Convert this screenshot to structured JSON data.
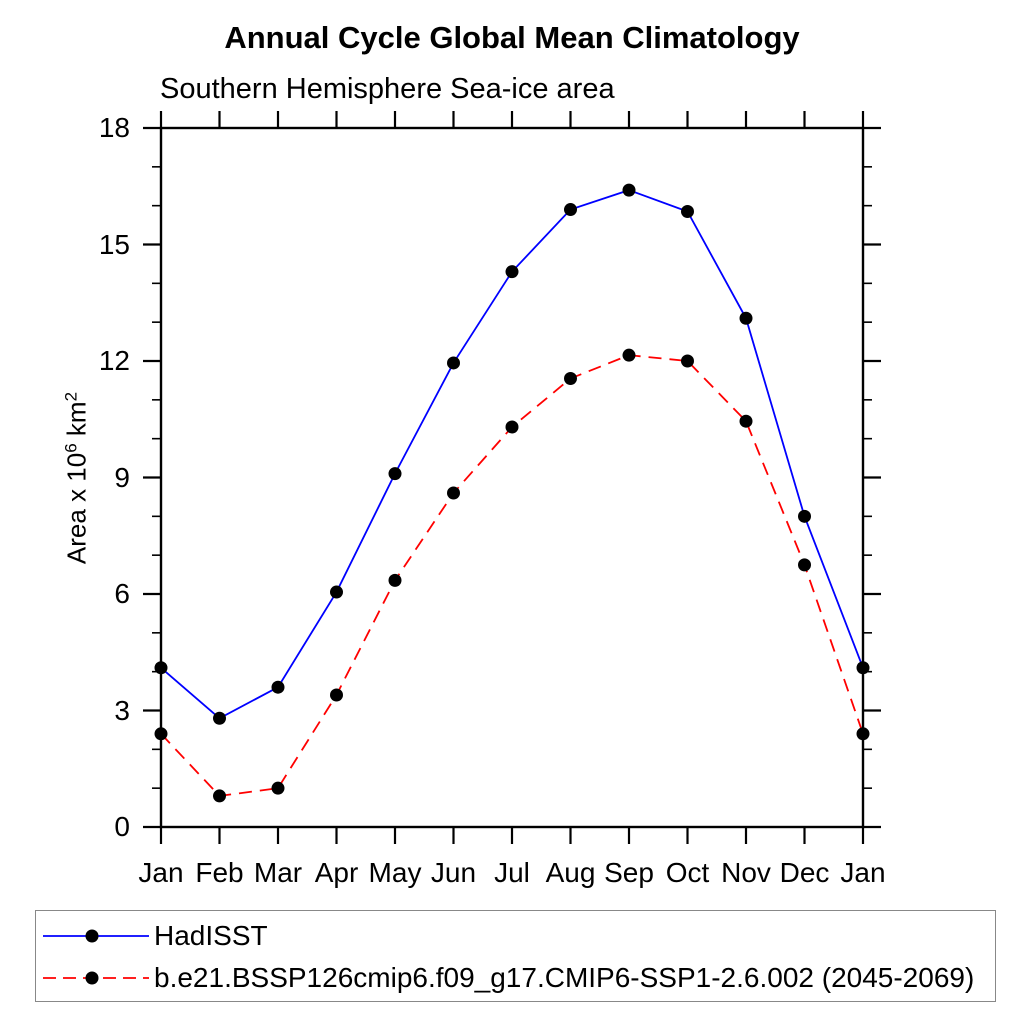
{
  "title": "Annual Cycle Global Mean Climatology",
  "subtitle": "Southern Hemisphere Sea-ice area",
  "y_axis": {
    "label_prefix": "Area x 10",
    "label_sup1": "6",
    "label_mid": " km",
    "label_sup2": "2"
  },
  "chart_data": {
    "type": "line",
    "title": "Annual Cycle Global Mean Climatology",
    "subtitle": "Southern Hemisphere Sea-ice area",
    "xlabel": "",
    "ylabel": "Area x 10^6 km^2",
    "categories": [
      "Jan",
      "Feb",
      "Mar",
      "Apr",
      "May",
      "Jun",
      "Jul",
      "Aug",
      "Sep",
      "Oct",
      "Nov",
      "Dec",
      "Jan"
    ],
    "ylim": [
      0,
      18
    ],
    "y_major_ticks": [
      0,
      3,
      6,
      9,
      12,
      15,
      18
    ],
    "y_minor_step": 1,
    "grid": false,
    "legend_position": "bottom-box",
    "frame_color": "#000000",
    "legend_border_color": "#888888",
    "series": [
      {
        "name": "HadISST",
        "line_color": "#0000ff",
        "line_style": "solid",
        "marker": "filled-circle",
        "marker_color": "#000000",
        "values": [
          4.1,
          2.8,
          3.6,
          6.05,
          9.1,
          11.95,
          14.3,
          15.9,
          16.4,
          15.85,
          13.1,
          8.0,
          4.1
        ]
      },
      {
        "name": "b.e21.BSSP126cmip6.f09_g17.CMIP6-SSP1-2.6.002 (2045-2069)",
        "line_color": "#ff0000",
        "line_style": "dashed",
        "marker": "filled-circle",
        "marker_color": "#000000",
        "values": [
          2.4,
          0.8,
          1.0,
          3.4,
          6.35,
          8.6,
          10.3,
          11.55,
          12.15,
          12.0,
          10.45,
          6.75,
          2.4
        ]
      }
    ]
  }
}
